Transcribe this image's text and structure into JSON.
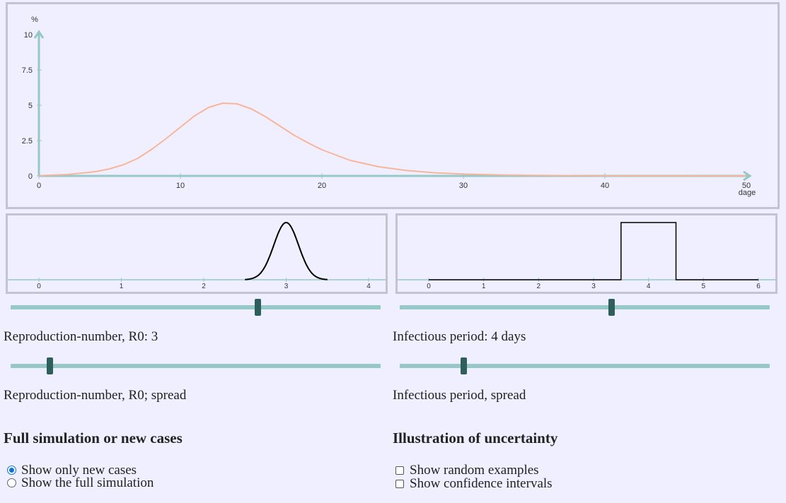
{
  "chart_data": [
    {
      "type": "line",
      "ylabel": "%",
      "xlabel": "dage",
      "xlim": [
        0,
        50
      ],
      "ylim": [
        0,
        10
      ],
      "x_ticks": [
        0,
        10,
        20,
        30,
        40,
        50
      ],
      "y_ticks": [
        0,
        2.5,
        5,
        7.5,
        10
      ],
      "y_tick_labels": [
        "0",
        "2.5",
        "5",
        "7.5",
        "10"
      ],
      "series": [
        {
          "color": "#f7b69b",
          "x": [
            0,
            2,
            4,
            5,
            6,
            7,
            8,
            9,
            10,
            11,
            12,
            13,
            14,
            15,
            16,
            17,
            18,
            19,
            20,
            22,
            24,
            26,
            28,
            30,
            33,
            36,
            40,
            45,
            50
          ],
          "y": [
            0.02,
            0.1,
            0.3,
            0.5,
            0.8,
            1.25,
            1.9,
            2.65,
            3.45,
            4.25,
            4.85,
            5.15,
            5.1,
            4.75,
            4.2,
            3.55,
            2.9,
            2.35,
            1.85,
            1.1,
            0.65,
            0.38,
            0.22,
            0.13,
            0.06,
            0.03,
            0.01,
            0.005,
            0
          ]
        }
      ]
    },
    {
      "type": "line",
      "xlim": [
        0,
        4
      ],
      "x_ticks": [
        0,
        1,
        2,
        3,
        4
      ],
      "series": [
        {
          "color": "#000000",
          "distribution": "normal",
          "mean": 3,
          "sd": 0.15,
          "x_range": [
            2.5,
            3.5
          ]
        }
      ]
    },
    {
      "type": "line",
      "xlim": [
        0,
        6
      ],
      "x_ticks": [
        0,
        1,
        2,
        3,
        4,
        5,
        6
      ],
      "series": [
        {
          "color": "#000000",
          "x": [
            0,
            3.5,
            3.5,
            4.5,
            4.5,
            6
          ],
          "y": [
            0,
            0,
            1,
            1,
            0,
            0
          ]
        }
      ]
    }
  ],
  "controls": {
    "r0_slider": {
      "min": 0,
      "max": 4.5,
      "value": 3
    },
    "r0_spread_slider": {
      "fraction": 0.105
    },
    "ip_slider": {
      "min": 0,
      "max": 7,
      "value": 4
    },
    "ip_spread_slider": {
      "fraction": 0.172
    },
    "r0_label": "Reproduction-number, R0: 3",
    "r0_spread_label": "Reproduction-number, R0; spread",
    "ip_label": "Infectious period: 4 days",
    "ip_spread_label": "Infectious period, spread"
  },
  "left_section": {
    "heading": "Full simulation or new cases",
    "options": [
      {
        "label": "Show only new cases",
        "checked": true
      },
      {
        "label": "Show the full simulation",
        "checked": false
      }
    ]
  },
  "right_section": {
    "heading": "Illustration of uncertainty",
    "options": [
      {
        "label": "Show random examples",
        "checked": false
      },
      {
        "label": "Show confidence intervals",
        "checked": false
      }
    ]
  },
  "colors": {
    "axis": "#96c8c8",
    "curve": "#f7b69b",
    "thumb": "#2f5f5c"
  }
}
